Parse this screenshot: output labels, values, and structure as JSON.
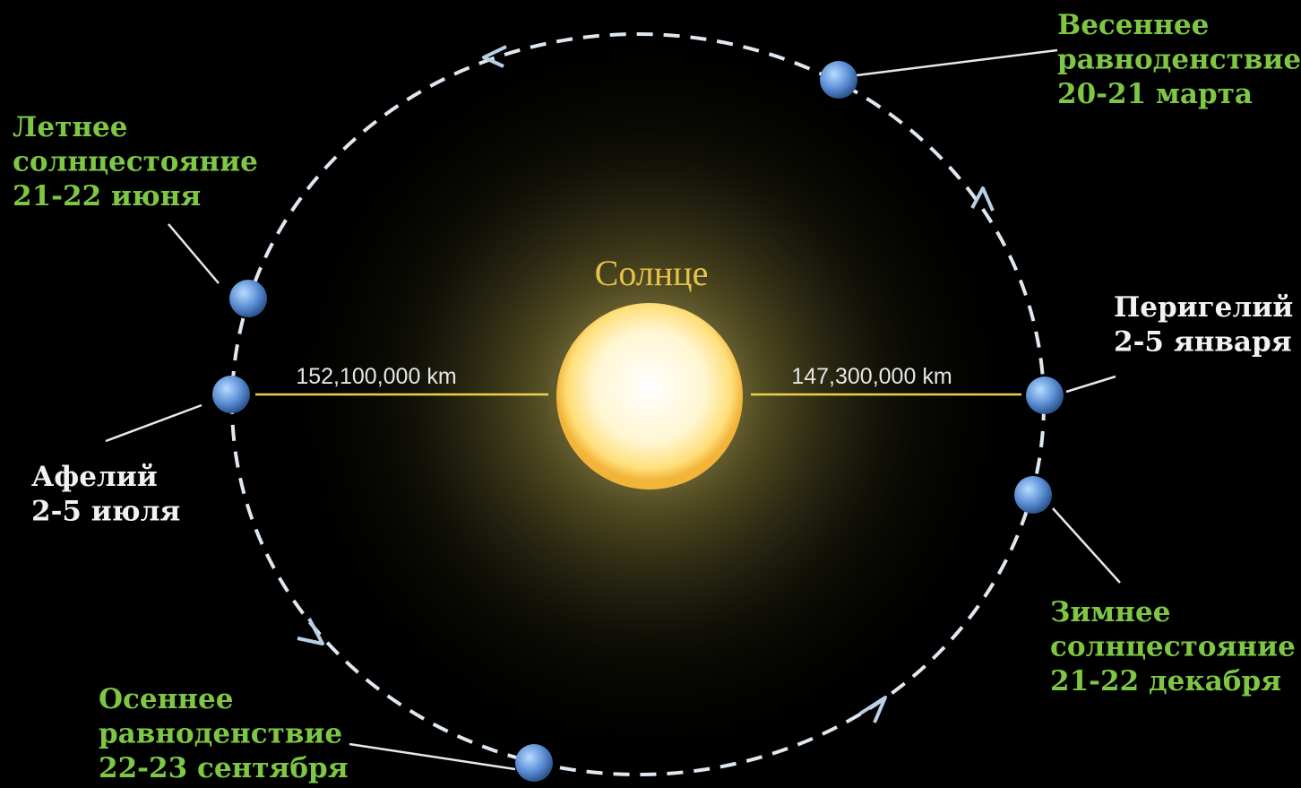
{
  "sun": {
    "label": "Солнце"
  },
  "distances": {
    "aphelion": "152,100,000 km",
    "perihelion": "147,300,000 km"
  },
  "points": [
    {
      "lines": [
        "Весеннее",
        "равноденствие",
        "20-21 марта"
      ]
    },
    {
      "lines": [
        "Летнее",
        "солнцестояние",
        "21-22 июня"
      ]
    },
    {
      "lines": [
        "Перигелий",
        "2-5 января"
      ]
    },
    {
      "lines": [
        "Афелий",
        "2-5 июля"
      ]
    },
    {
      "lines": [
        "Зимнее",
        "солнцестояние",
        "21-22 декабря"
      ]
    },
    {
      "lines": [
        "Осеннее",
        "равноденствие",
        "22-23 сентября"
      ]
    }
  ]
}
